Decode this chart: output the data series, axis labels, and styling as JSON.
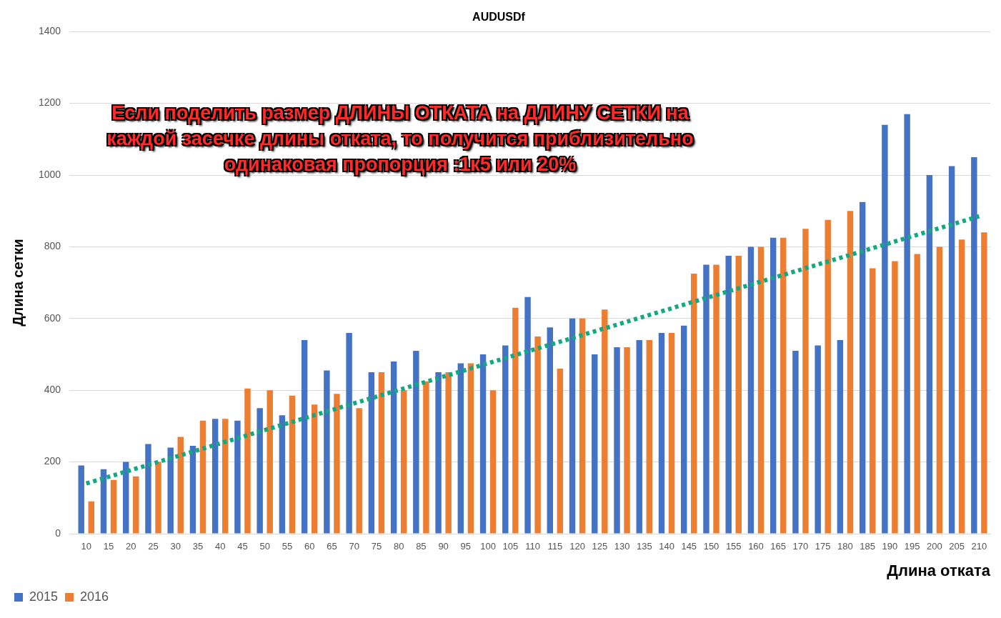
{
  "chart_data": {
    "type": "bar",
    "title": "AUDUSDf",
    "xlabel": "Длина отката",
    "ylabel": "Длина сетки",
    "categories": [
      "10",
      "15",
      "20",
      "25",
      "30",
      "35",
      "40",
      "45",
      "50",
      "55",
      "60",
      "65",
      "70",
      "75",
      "80",
      "85",
      "90",
      "95",
      "100",
      "105",
      "110",
      "115",
      "120",
      "125",
      "130",
      "135",
      "140",
      "145",
      "150",
      "155",
      "160",
      "165",
      "170",
      "175",
      "180",
      "185",
      "190",
      "195",
      "200",
      "205",
      "210"
    ],
    "series": [
      {
        "name": "2015",
        "color": "#4472c4",
        "values": [
          190,
          180,
          200,
          250,
          240,
          245,
          320,
          315,
          350,
          330,
          540,
          455,
          560,
          450,
          480,
          510,
          450,
          475,
          500,
          525,
          660,
          575,
          600,
          500,
          520,
          540,
          560,
          580,
          750,
          775,
          800,
          825,
          510,
          525,
          540,
          925,
          1140,
          1170,
          1000,
          1025,
          1050
        ]
      },
      {
        "name": "2016",
        "color": "#ed7d31",
        "values": [
          90,
          150,
          160,
          200,
          270,
          315,
          320,
          405,
          400,
          385,
          360,
          390,
          350,
          450,
          400,
          425,
          450,
          475,
          400,
          630,
          550,
          460,
          600,
          625,
          520,
          540,
          560,
          725,
          750,
          775,
          800,
          825,
          850,
          875,
          900,
          740,
          760,
          780,
          800,
          820,
          840
        ]
      },
      {
        "type": "line",
        "color": "#12a982",
        "line_style": "dotted",
        "x": [
          "10",
          "210"
        ],
        "values": [
          140,
          885
        ]
      }
    ],
    "ylim": [
      0,
      1400
    ],
    "yticks": [
      0,
      200,
      400,
      600,
      800,
      1000,
      1200,
      1400
    ],
    "grid": "y",
    "legend": "bottom left",
    "annotations": [
      "Если поделить размер ДЛИНЫ ОТКАТА на ДЛИНУ СЕТКИ на\nкаждой засечке длины отката, то получится приблизительно\nодинаковая пропорция :1к5 или 20%"
    ]
  }
}
